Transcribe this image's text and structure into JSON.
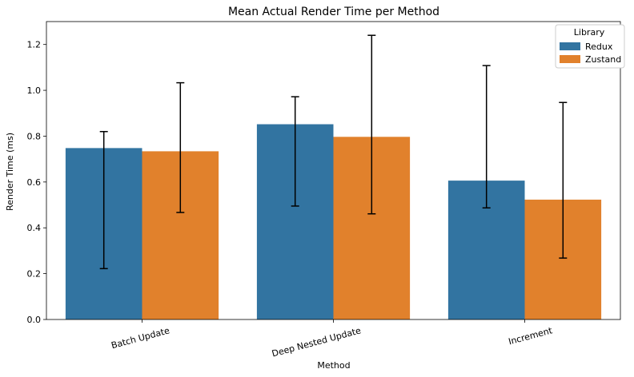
{
  "chart_data": {
    "type": "bar",
    "title": "Mean Actual Render Time per Method",
    "xlabel": "Method",
    "ylabel": "Render Time (ms)",
    "ylim": [
      0,
      1.3
    ],
    "yticks": [
      0.0,
      0.2,
      0.4,
      0.6,
      0.8,
      1.0,
      1.2
    ],
    "ytick_labels": [
      "0.0",
      "0.2",
      "0.4",
      "0.6",
      "0.8",
      "1.0",
      "1.2"
    ],
    "categories": [
      "Batch Update",
      "Deep Nested Update",
      "Increment"
    ],
    "legend": {
      "title": "Library",
      "position": "top-right"
    },
    "grid": false,
    "error_bars": true,
    "series": [
      {
        "name": "Redux",
        "color": "#3274a1",
        "values": [
          0.748,
          0.852,
          0.606
        ],
        "err_low": [
          0.222,
          0.495,
          0.487
        ],
        "err_high": [
          0.82,
          0.972,
          1.108
        ]
      },
      {
        "name": "Zustand",
        "color": "#e1812c",
        "values": [
          0.734,
          0.797,
          0.523
        ],
        "err_low": [
          0.467,
          0.461,
          0.268
        ],
        "err_high": [
          1.033,
          1.24,
          0.947
        ]
      }
    ]
  }
}
